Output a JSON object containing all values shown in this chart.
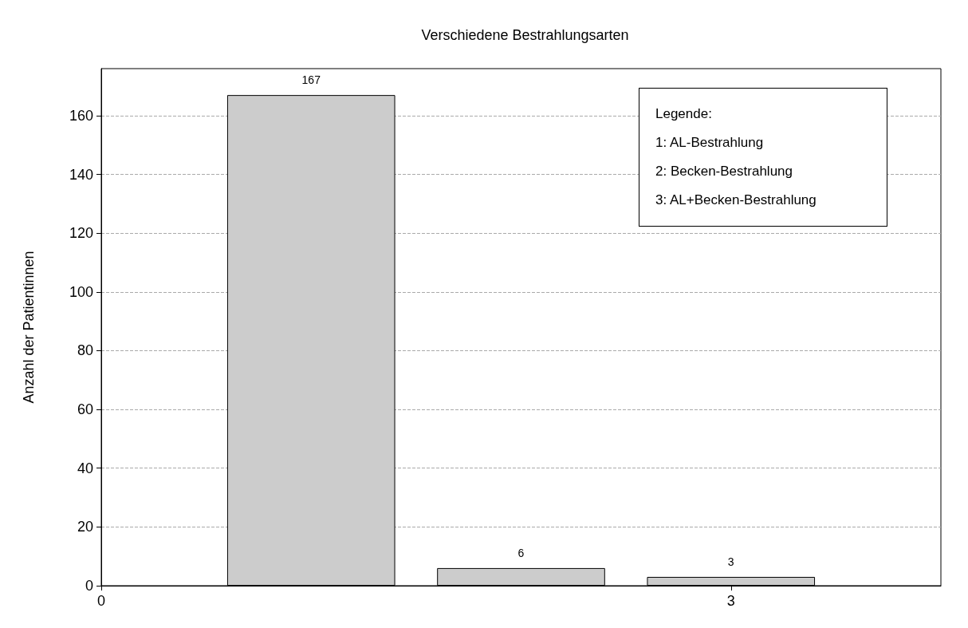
{
  "chart_data": {
    "type": "bar",
    "title": "Verschiedene Bestrahlungsarten",
    "ylabel": "Anzahl der Patientinnen",
    "x": [
      1,
      2,
      3
    ],
    "values": [
      167,
      6,
      3
    ],
    "color": "#cccccc",
    "xlim": [
      0,
      4
    ],
    "xticks": [
      0,
      3
    ],
    "ylim": [
      0,
      176
    ],
    "yticks": [
      0,
      20,
      40,
      60,
      80,
      100,
      120,
      140,
      160
    ],
    "grid": "y",
    "data_labels": true,
    "annotations": [
      "Legende:",
      "1: AL-Bestrahlung",
      "2: Becken-Bestrahlung",
      "3: AL+Becken-Bestrahlung"
    ]
  }
}
